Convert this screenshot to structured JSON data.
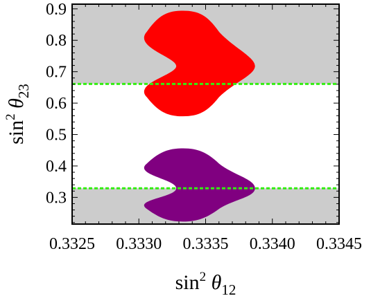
{
  "chart_data": {
    "type": "scatter",
    "xlabel": "sin² θ12",
    "ylabel": "sin² θ23",
    "xlim": [
      0.3325,
      0.3345
    ],
    "ylim": [
      0.215,
      0.915
    ],
    "x_ticks": [
      0.3325,
      0.333,
      0.3335,
      0.334,
      0.3345
    ],
    "x_tick_labels": [
      "0.3325",
      "0.3330",
      "0.3335",
      "0.3340",
      "0.3345"
    ],
    "y_ticks": [
      0.3,
      0.4,
      0.5,
      0.6,
      0.7,
      0.8,
      0.9
    ],
    "y_tick_labels": [
      "0.3",
      "0.4",
      "0.5",
      "0.6",
      "0.7",
      "0.8",
      "0.9"
    ],
    "grid": false,
    "colors": {
      "excluded_band": "#cccccc",
      "upper_region": "#ff0000",
      "lower_region": "#800080",
      "reference_line": "#33ee11"
    },
    "shaded_bands": [
      {
        "y_from": 0.215,
        "y_to": 0.329
      },
      {
        "y_from": 0.661,
        "y_to": 0.915
      }
    ],
    "reference_lines": [
      0.661,
      0.329
    ],
    "regions": [
      {
        "color": "#ff0000",
        "x_min": 0.33328,
        "x_max": 0.33387,
        "y_min": 0.558,
        "y_max": 0.894,
        "y_widest": 0.718,
        "x_center": 0.33333
      },
      {
        "color": "#800080",
        "x_min": 0.33328,
        "x_max": 0.33387,
        "y_min": 0.223,
        "y_max": 0.456,
        "y_widest": 0.329,
        "x_center": 0.33333
      }
    ]
  }
}
